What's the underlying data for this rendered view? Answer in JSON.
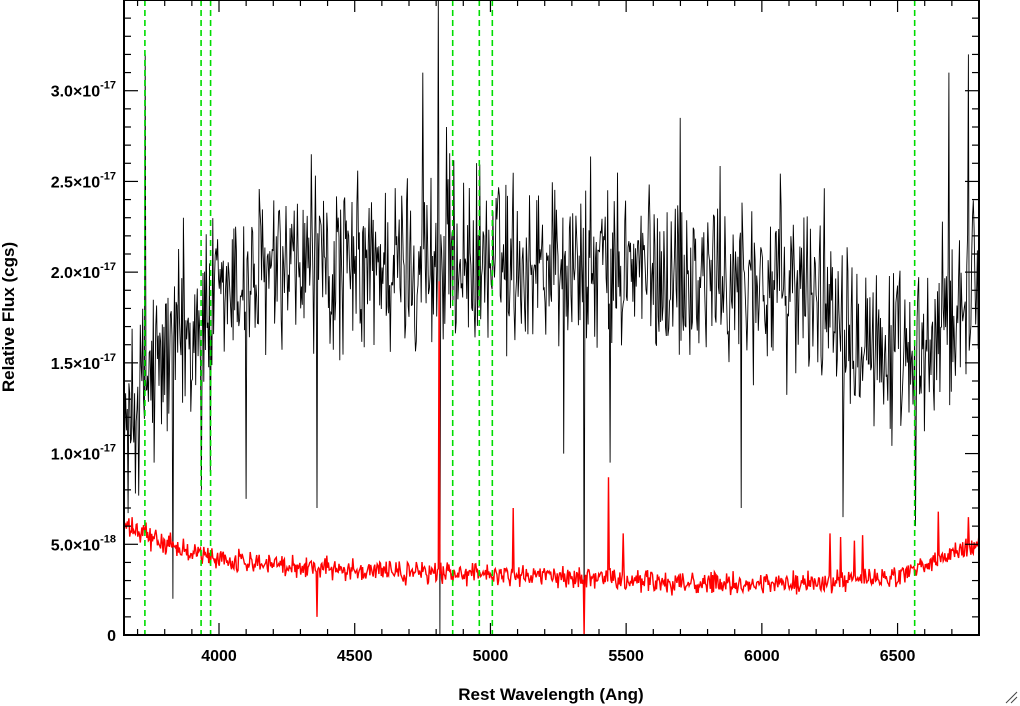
{
  "chart_data": {
    "type": "line",
    "xlabel": "Rest Wavelength (Ang)",
    "ylabel": "Relative Flux (cgs)",
    "xlim": [
      3650,
      6800
    ],
    "ylim": [
      0,
      3.5e-17
    ],
    "x_ticks": [
      4000,
      4500,
      5000,
      5500,
      6000,
      6500
    ],
    "x_tick_labels": [
      "4000",
      "4500",
      "5000",
      "5500",
      "6000",
      "6500"
    ],
    "y_ticks": [
      {
        "value": 0,
        "mantissa": "0",
        "exponent": ""
      },
      {
        "value": 5e-18,
        "mantissa": "5.0×10",
        "exponent": "-18"
      },
      {
        "value": 1e-17,
        "mantissa": "1.0×10",
        "exponent": "-17"
      },
      {
        "value": 1.5e-17,
        "mantissa": "1.5×10",
        "exponent": "-17"
      },
      {
        "value": 2e-17,
        "mantissa": "2.0×10",
        "exponent": "-17"
      },
      {
        "value": 2.5e-17,
        "mantissa": "2.5×10",
        "exponent": "-17"
      },
      {
        "value": 3e-17,
        "mantissa": "3.0×10",
        "exponent": "-17"
      }
    ],
    "series": [
      {
        "color": "#000000",
        "sampling_step": 3,
        "continuum": [
          [
            3650,
            1.1e-17
          ],
          [
            3750,
            1.45e-17
          ],
          [
            3900,
            1.7e-17
          ],
          [
            4100,
            1.95e-17
          ],
          [
            4400,
            2e-17
          ],
          [
            4800,
            2.05e-17
          ],
          [
            5200,
            2.05e-17
          ],
          [
            5600,
            2e-17
          ],
          [
            6000,
            1.95e-17
          ],
          [
            6300,
            1.85e-17
          ],
          [
            6550,
            1.4e-17
          ],
          [
            6800,
            2.05e-17
          ]
        ],
        "noise_amplitude": 4.2e-18,
        "features": [
          [
            3727,
            3.2e-17
          ],
          [
            3760,
            9.5e-18
          ],
          [
            3830,
            2e-18
          ],
          [
            3870,
            2.3e-17
          ],
          [
            3934,
            8e-18
          ],
          [
            3968,
            9e-18
          ],
          [
            4100,
            7.5e-18
          ],
          [
            4340,
            2.65e-17
          ],
          [
            4360,
            7e-18
          ],
          [
            4750,
            3.1e-17
          ],
          [
            4808,
            3.5e-17
          ],
          [
            4815,
            0.0
          ],
          [
            4838,
            2.8e-17
          ],
          [
            5346,
            0.0
          ],
          [
            5270,
            1e-17
          ],
          [
            5440,
            9.5e-18
          ],
          [
            5700,
            2.85e-17
          ],
          [
            5925,
            7e-18
          ],
          [
            6300,
            6.5e-18
          ],
          [
            6565,
            6e-18
          ],
          [
            6690,
            3.1e-17
          ],
          [
            6760,
            3.2e-17
          ]
        ]
      },
      {
        "color": "#ff0000",
        "sampling_step": 3,
        "continuum": [
          [
            3650,
            6e-18
          ],
          [
            3800,
            5e-18
          ],
          [
            4000,
            4.2e-18
          ],
          [
            4300,
            3.8e-18
          ],
          [
            4600,
            3.5e-18
          ],
          [
            5000,
            3.4e-18
          ],
          [
            5400,
            3.1e-18
          ],
          [
            5800,
            2.8e-18
          ],
          [
            6200,
            2.9e-18
          ],
          [
            6500,
            3.2e-18
          ],
          [
            6800,
            5e-18
          ]
        ],
        "noise_amplitude": 5e-19,
        "features": [
          [
            3730,
            6.2e-18
          ],
          [
            4360,
            1e-18
          ],
          [
            4810,
            1.95e-17
          ],
          [
            5085,
            7e-18
          ],
          [
            5346,
            0.0
          ],
          [
            5435,
            8.7e-18
          ],
          [
            5490,
            5.6e-18
          ],
          [
            6250,
            5.6e-18
          ],
          [
            6290,
            5.4e-18
          ],
          [
            6340,
            5.2e-18
          ],
          [
            6370,
            5.5e-18
          ],
          [
            6650,
            6.8e-18
          ],
          [
            6760,
            6.5e-18
          ]
        ]
      }
    ],
    "vertical_lines": {
      "color": "#00dd00",
      "dash": "dashed",
      "x": [
        3727,
        3934,
        3969,
        4861,
        4959,
        5007,
        6563
      ]
    },
    "grid": false,
    "legend": "none"
  }
}
